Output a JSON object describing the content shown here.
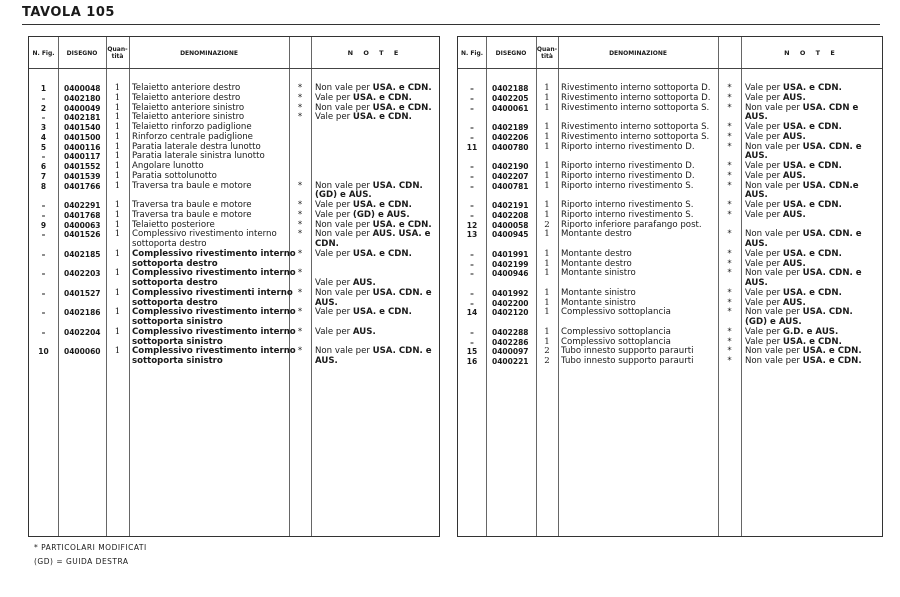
{
  "title": "TAVOLA 105",
  "headers": {
    "fig": "N. Fig.",
    "disegno": "DISEGNO",
    "qty": "Quan- tità",
    "denominazione": "DENOMINAZIONE",
    "note": "N O T E"
  },
  "left_rows": [
    {
      "fig": "1",
      "dis": "0400048",
      "qty": "1",
      "den": [
        "Telaietto anteriore destro"
      ],
      "star": "*",
      "note": [
        "Non vale per USA. e CDN."
      ]
    },
    {
      "fig": "–",
      "dis": "0402180",
      "qty": "1",
      "den": [
        "Telaietto anteriore destro"
      ],
      "star": "*",
      "note": [
        "Vale per USA. e CDN."
      ]
    },
    {
      "fig": "2",
      "dis": "0400049",
      "qty": "1",
      "den": [
        "Telaietto anteriore sinistro"
      ],
      "star": "*",
      "note": [
        "Non vale per USA. e CDN."
      ]
    },
    {
      "fig": "–",
      "dis": "0402181",
      "qty": "1",
      "den": [
        "Telaietto anteriore sinistro"
      ],
      "star": "*",
      "note": [
        "Vale per USA. e CDN."
      ]
    },
    {
      "fig": "3",
      "dis": "0401540",
      "qty": "1",
      "den": [
        "Telaietto rinforzo padiglione"
      ],
      "star": "",
      "note": []
    },
    {
      "fig": "4",
      "dis": "0401500",
      "qty": "1",
      "den": [
        "Rinforzo centrale padiglione"
      ],
      "star": "",
      "note": []
    },
    {
      "fig": "5",
      "dis": "0400116",
      "qty": "1",
      "den": [
        "Paratia laterale destra lunotto"
      ],
      "star": "",
      "note": []
    },
    {
      "fig": "–",
      "dis": "0400117",
      "qty": "1",
      "den": [
        "Paratia laterale sinistra lunotto"
      ],
      "star": "",
      "note": []
    },
    {
      "fig": "6",
      "dis": "0401552",
      "qty": "1",
      "den": [
        "Angolare lunotto"
      ],
      "star": "",
      "note": []
    },
    {
      "fig": "7",
      "dis": "0401539",
      "qty": "1",
      "den": [
        "Paratia sottolunotto"
      ],
      "star": "",
      "note": []
    },
    {
      "fig": "8",
      "dis": "0401766",
      "qty": "1",
      "den": [
        "Traversa tra baule e motore"
      ],
      "star": "*",
      "note": [
        "Non vale per USA. CDN.",
        "(GD) e AUS."
      ]
    },
    {
      "fig": "–",
      "dis": "0402291",
      "qty": "1",
      "den": [
        "Traversa tra baule e motore"
      ],
      "star": "*",
      "note": [
        "Vale per USA. e CDN."
      ]
    },
    {
      "fig": "–",
      "dis": "0401768",
      "qty": "1",
      "den": [
        "Traversa tra baule e motore"
      ],
      "star": "*",
      "note": [
        "Vale per (GD) e AUS."
      ]
    },
    {
      "fig": "9",
      "dis": "0400063",
      "qty": "1",
      "den": [
        "Telaietto posteriore"
      ],
      "star": "*",
      "note": [
        "Non vale per USA. e CDN."
      ]
    },
    {
      "fig": "–",
      "dis": "0401526",
      "qty": "1",
      "den": [
        "Complessivo rivestimento interno",
        "sottoporta destro"
      ],
      "star": "*",
      "note": [
        "Non vale per AUS. USA. e",
        "CDN."
      ]
    },
    {
      "fig": "–",
      "dis": "0402185",
      "qty": "1",
      "bold": true,
      "den": [
        "Complessivo rivestimento interno",
        "sottoporta destro"
      ],
      "star": "*",
      "note": [
        "Vale per USA. e CDN."
      ]
    },
    {
      "fig": "–",
      "dis": "0402203",
      "qty": "1",
      "bold": true,
      "den": [
        "Complessivo rivestimento interno",
        "sottoporta destro"
      ],
      "star": "*",
      "note": [
        "",
        "Vale per AUS."
      ]
    },
    {
      "fig": "–",
      "dis": "0401527",
      "qty": "1",
      "bold": true,
      "den": [
        "Complessivo rivestimenti interno",
        "sottoporta destro"
      ],
      "star": "*",
      "note": [
        "Non vale per USA. CDN. e",
        "AUS."
      ]
    },
    {
      "fig": "–",
      "dis": "0402186",
      "qty": "1",
      "bold": true,
      "den": [
        "Complessivo rivestimento interno",
        "sottoporta sinistro"
      ],
      "star": "*",
      "note": [
        "Vale per USA. e CDN."
      ]
    },
    {
      "fig": "–",
      "dis": "0402204",
      "qty": "1",
      "bold": true,
      "den": [
        "Complessivo rivestimento interno",
        "sottoporta sinistro"
      ],
      "star": "*",
      "note": [
        "Vale per AUS."
      ]
    },
    {
      "fig": "10",
      "dis": "0400060",
      "qty": "1",
      "bold": true,
      "den": [
        "Complessivo rivestimento interno",
        "sottoporta sinistro"
      ],
      "star": "*",
      "note": [
        "Non vale per USA. CDN. e",
        "AUS."
      ]
    }
  ],
  "right_rows": [
    {
      "fig": "–",
      "dis": "0402188",
      "qty": "1",
      "den": [
        "Rivestimento interno sottoporta D."
      ],
      "star": "*",
      "note": [
        "Vale per USA. e CDN."
      ]
    },
    {
      "fig": "–",
      "dis": "0402205",
      "qty": "1",
      "den": [
        "Rivestimento interno sottoporta D."
      ],
      "star": "*",
      "note": [
        "Vale per AUS."
      ]
    },
    {
      "fig": "–",
      "dis": "0400061",
      "qty": "1",
      "den": [
        "Rivestimento interno sottoporta S."
      ],
      "star": "*",
      "note": [
        "Non vale per USA. CDN e",
        "AUS."
      ]
    },
    {
      "fig": "–",
      "dis": "0402189",
      "qty": "1",
      "den": [
        "Rivestimento interno sottoporta S."
      ],
      "star": "*",
      "note": [
        "Vale per USA. e CDN."
      ]
    },
    {
      "fig": "–",
      "dis": "0402206",
      "qty": "1",
      "den": [
        "Rivestimento interno sottoporta S."
      ],
      "star": "*",
      "note": [
        "Vale per AUS."
      ]
    },
    {
      "fig": "11",
      "dis": "0400780",
      "qty": "1",
      "den": [
        "Riporto interno rivestimento D."
      ],
      "star": "*",
      "note": [
        "Non vale per USA. CDN. e",
        "AUS."
      ]
    },
    {
      "fig": "–",
      "dis": "0402190",
      "qty": "1",
      "den": [
        "Riporto interno rivestimento D."
      ],
      "star": "*",
      "note": [
        "Vale per USA. e CDN."
      ]
    },
    {
      "fig": "–",
      "dis": "0402207",
      "qty": "1",
      "den": [
        "Riporto interno rivestimento D."
      ],
      "star": "*",
      "note": [
        "Vale per AUS."
      ]
    },
    {
      "fig": "–",
      "dis": "0400781",
      "qty": "1",
      "den": [
        "Riporto interno rivestimento S."
      ],
      "star": "*",
      "note": [
        "Non vale per USA. CDN.e",
        "AUS."
      ]
    },
    {
      "fig": "–",
      "dis": "0402191",
      "qty": "1",
      "den": [
        "Riporto interno rivestimento S."
      ],
      "star": "*",
      "note": [
        "Vale per USA. e CDN."
      ]
    },
    {
      "fig": "–",
      "dis": "0402208",
      "qty": "1",
      "den": [
        "Riporto interno rivestimento S."
      ],
      "star": "*",
      "note": [
        "Vale per AUS."
      ]
    },
    {
      "fig": "12",
      "dis": "0400058",
      "qty": "2",
      "den": [
        "Riporto inferiore parafango post."
      ],
      "star": "",
      "note": []
    },
    {
      "fig": "13",
      "dis": "0400945",
      "qty": "1",
      "den": [
        "Montante destro"
      ],
      "star": "*",
      "note": [
        "Non vale per USA. CDN. e",
        "AUS."
      ]
    },
    {
      "fig": "–",
      "dis": "0401991",
      "qty": "1",
      "den": [
        "Montante destro"
      ],
      "star": "*",
      "note": [
        "Vale per USA. e CDN."
      ]
    },
    {
      "fig": "–",
      "dis": "0402199",
      "qty": "1",
      "den": [
        "Montante destro"
      ],
      "star": "*",
      "note": [
        "Vale per AUS."
      ]
    },
    {
      "fig": "–",
      "dis": "0400946",
      "qty": "1",
      "den": [
        "Montante sinistro"
      ],
      "star": "*",
      "note": [
        "Non vale per USA. CDN. e",
        "AUS."
      ]
    },
    {
      "fig": "–",
      "dis": "0401992",
      "qty": "1",
      "den": [
        "Montante sinistro"
      ],
      "star": "*",
      "note": [
        "Vale per USA. e CDN."
      ]
    },
    {
      "fig": "–",
      "dis": "0402200",
      "qty": "1",
      "den": [
        "Montante sinistro"
      ],
      "star": "*",
      "note": [
        "Vale per AUS."
      ]
    },
    {
      "fig": "14",
      "dis": "0402120",
      "qty": "1",
      "den": [
        "Complessivo sottoplancia"
      ],
      "star": "*",
      "note": [
        "Non vale per USA. CDN.",
        "(GD) e AUS."
      ]
    },
    {
      "fig": "–",
      "dis": "0402288",
      "qty": "1",
      "den": [
        "Complessivo sottoplancia"
      ],
      "star": "*",
      "note": [
        "Vale per G.D. e AUS."
      ]
    },
    {
      "fig": "–",
      "dis": "0402286",
      "qty": "1",
      "den": [
        "Complessivo sottoplancia"
      ],
      "star": "*",
      "note": [
        "Vale per USA. e CDN."
      ]
    },
    {
      "fig": "15",
      "dis": "0400097",
      "qty": "2",
      "den": [
        "Tubo innesto supporto paraurti"
      ],
      "star": "*",
      "note": [
        "Non vale per USA. e CDN."
      ]
    },
    {
      "fig": "16",
      "dis": "0400221",
      "qty": "2",
      "den": [
        "Tubo innesto supporto paraurti"
      ],
      "star": "*",
      "note": [
        "Non vale per USA. e CDN."
      ]
    }
  ],
  "footer": {
    "line1": "* PARTICOLARI MODIFICATI",
    "line2": "(GD) = GUIDA DESTRA"
  }
}
